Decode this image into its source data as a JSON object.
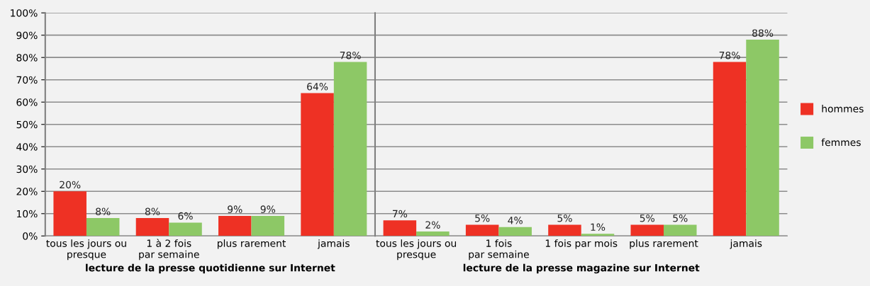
{
  "chart_data": [
    {
      "type": "bar",
      "xlabel": "lecture de la presse quotidienne sur Internet",
      "categories": [
        "tous les jours ou\npresque",
        "1 à 2 fois\npar semaine",
        "plus rarement",
        "jamais"
      ],
      "series": [
        {
          "name": "hommes",
          "color": "#ee3124",
          "values": [
            20,
            8,
            9,
            64
          ],
          "value_labels": [
            "20%",
            "8%",
            "9%",
            "64%"
          ]
        },
        {
          "name": "femmes",
          "color": "#8dc866",
          "values": [
            8,
            6,
            9,
            78
          ],
          "value_labels": [
            "8%",
            "6%",
            "9%",
            "78%"
          ]
        }
      ],
      "ylim": [
        0,
        100
      ],
      "yticks": [
        {
          "value": 0,
          "label": "0%"
        },
        {
          "value": 10,
          "label": "10%"
        },
        {
          "value": 20,
          "label": "20%"
        },
        {
          "value": 30,
          "label": "30%"
        },
        {
          "value": 40,
          "label": "40%"
        },
        {
          "value": 50,
          "label": "50%"
        },
        {
          "value": 60,
          "label": "60%"
        },
        {
          "value": 70,
          "label": "70%"
        },
        {
          "value": 80,
          "label": "80%"
        },
        {
          "value": 90,
          "label": "90%"
        },
        {
          "value": 100,
          "label": "100%"
        }
      ],
      "grid": "y",
      "legend": "right"
    },
    {
      "type": "bar",
      "xlabel": "lecture de la presse magazine sur Internet",
      "categories": [
        "tous les jours ou\npresque",
        "1 fois\npar semaine",
        "1 fois par mois",
        "plus rarement",
        "jamais"
      ],
      "series": [
        {
          "color": "#ee3124",
          "values": [
            7,
            5,
            5,
            5,
            78
          ],
          "value_labels": [
            "7%",
            "5%",
            "5%",
            "5%",
            "78%"
          ]
        },
        {
          "color": "#8dc866",
          "values": [
            2,
            4,
            1,
            5,
            88
          ],
          "value_labels": [
            "2%",
            "4%",
            "1%",
            "5%",
            "88%"
          ]
        }
      ],
      "ylim": [
        0,
        100
      ],
      "yticks": [
        {
          "value": 0,
          "label": null
        },
        {
          "value": 10,
          "label": null
        },
        {
          "value": 20,
          "label": null
        },
        {
          "value": 30,
          "label": null
        },
        {
          "value": 40,
          "label": null
        },
        {
          "value": 50,
          "label": null
        },
        {
          "value": 60,
          "label": null
        },
        {
          "value": 70,
          "label": null
        },
        {
          "value": 80,
          "label": null
        },
        {
          "value": 90,
          "label": null
        },
        {
          "value": 100,
          "label": null
        }
      ],
      "tick_labels": "x",
      "grid": "y"
    }
  ]
}
